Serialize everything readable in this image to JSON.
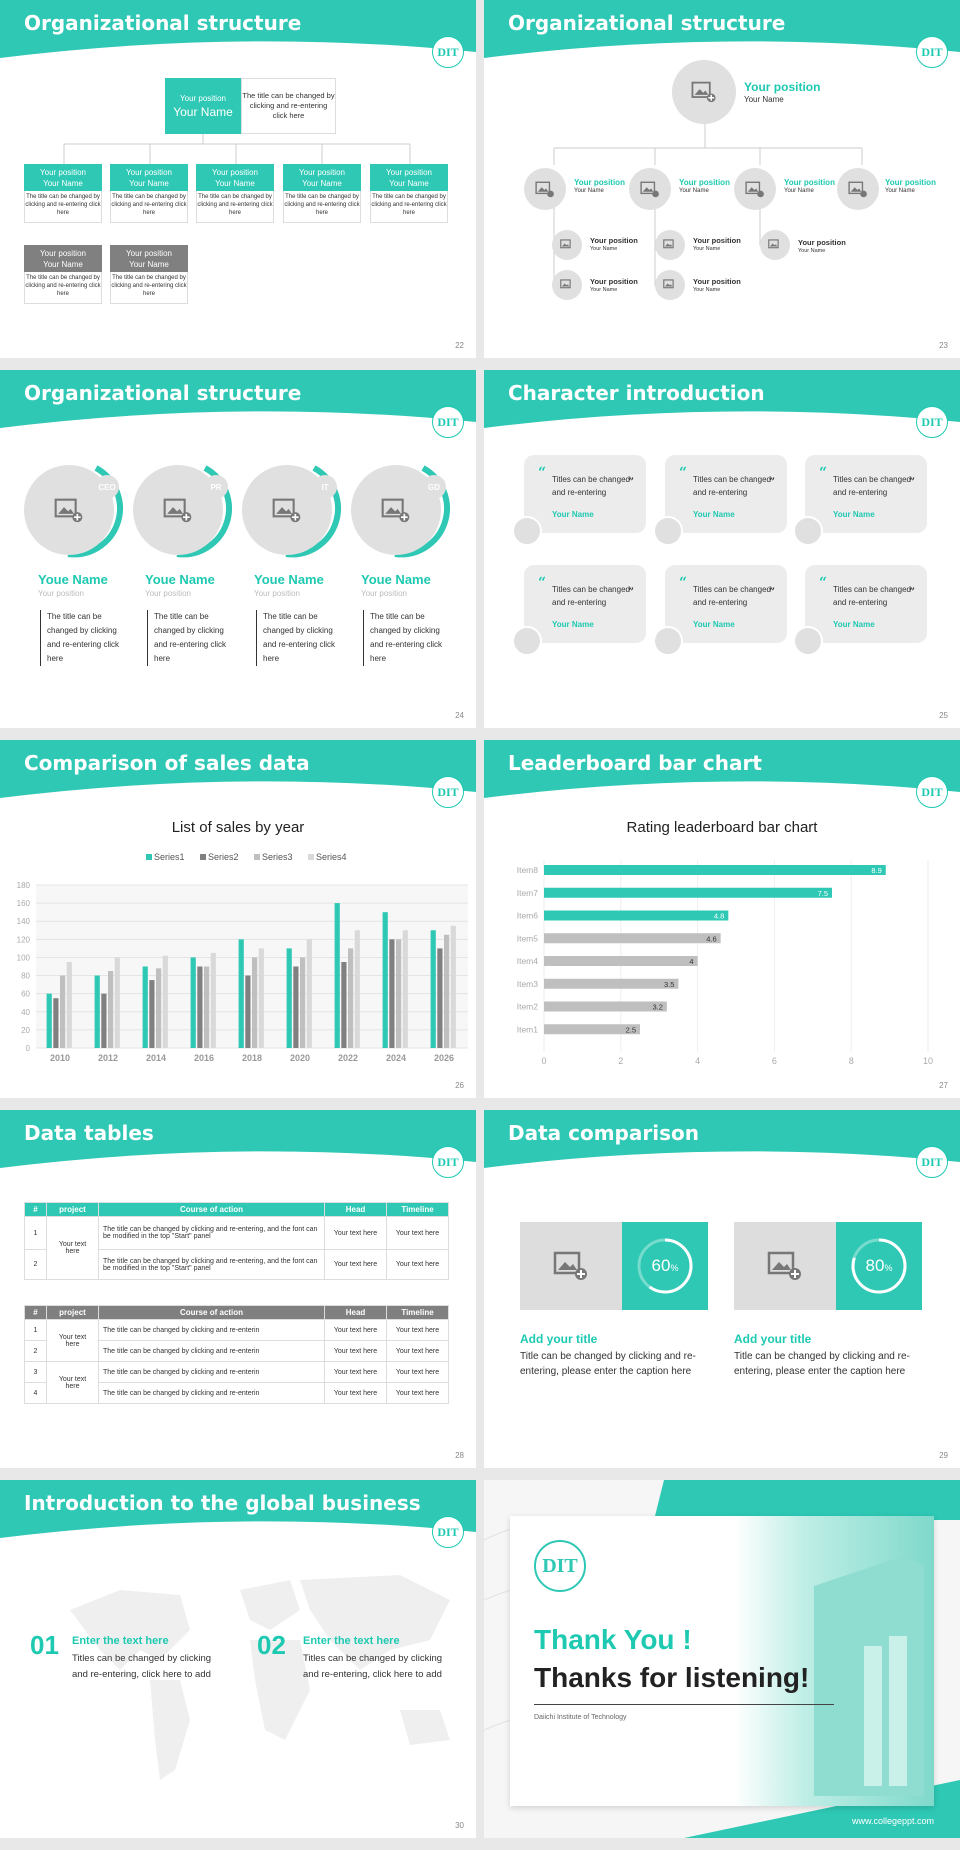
{
  "colors": {
    "teal": "#2ec8b4",
    "gray": "#808080",
    "light": "#bfbfbf"
  },
  "logo": "DIT",
  "s22": {
    "title": "Organizational structure",
    "page": "22",
    "top_pos": "Your position",
    "top_name": "Your Name",
    "top_desc": "The title can be changed by clicking and re-entering click here",
    "boxes": [
      {
        "pos": "Your position",
        "name": "Your Name",
        "desc": "The title can be changed by clicking and re-entering click here"
      },
      {
        "pos": "Your position",
        "name": "Your Name",
        "desc": "The title can be changed by clicking and re-entering click here"
      },
      {
        "pos": "Your position",
        "name": "Your Name",
        "desc": "The title can be changed by clicking and re-entering click here"
      },
      {
        "pos": "Your position",
        "name": "Your Name",
        "desc": "The title can be changed by clicking and re-entering click here"
      },
      {
        "pos": "Your position",
        "name": "Your Name",
        "desc": "The title can be changed by clicking and re-entering click here"
      },
      {
        "pos": "Your position",
        "name": "Your Name",
        "desc": "The title can be changed by clicking and re-entering click here"
      },
      {
        "pos": "Your position",
        "name": "Your Name",
        "desc": "The title can be changed by clicking and re-entering click here"
      }
    ]
  },
  "s23": {
    "title": "Organizational structure",
    "page": "23",
    "top_pos": "Your position",
    "top_name": "Your Name",
    "mid": [
      {
        "pos": "Your position",
        "name": "Your Name"
      },
      {
        "pos": "Your position",
        "name": "Your Name"
      },
      {
        "pos": "Your position",
        "name": "Your Name"
      },
      {
        "pos": "Your position",
        "name": "Your Name"
      }
    ],
    "sub": [
      {
        "pos": "Your position",
        "name": "Your Name"
      },
      {
        "pos": "Your position",
        "name": "Your Name"
      },
      {
        "pos": "Your position",
        "name": "Your Name"
      },
      {
        "pos": "Your position",
        "name": "Your Name"
      },
      {
        "pos": "Your position",
        "name": "Your Name"
      }
    ]
  },
  "s24": {
    "title": "Organizational structure",
    "page": "24",
    "people": [
      {
        "tag": "CEO",
        "name": "Youe Name",
        "pos": "Your position",
        "desc": "The title can be changed by clicking and re-entering click here"
      },
      {
        "tag": "PR",
        "name": "Youe Name",
        "pos": "Your position",
        "desc": "The title can be changed by clicking and re-entering click here"
      },
      {
        "tag": "IT",
        "name": "Youe Name",
        "pos": "Your position",
        "desc": "The title can be changed by clicking and re-entering click here"
      },
      {
        "tag": "GD",
        "name": "Youe Name",
        "pos": "Your position",
        "desc": "The title can be changed by clicking and re-entering click here"
      }
    ]
  },
  "s25": {
    "title": "Character introduction",
    "page": "25",
    "quotes": [
      {
        "text": "Titles can be changed and re-entering",
        "name": "Your Name"
      },
      {
        "text": "Titles can be changed and re-entering",
        "name": "Your Name"
      },
      {
        "text": "Titles can be changed and re-entering",
        "name": "Your Name"
      },
      {
        "text": "Titles can be changed and re-entering",
        "name": "Your Name"
      },
      {
        "text": "Titles can be changed and re-entering",
        "name": "Your Name"
      },
      {
        "text": "Titles can be changed and re-entering",
        "name": "Your Name"
      }
    ]
  },
  "s26": {
    "title": "Comparison of sales data",
    "page": "26"
  },
  "s27": {
    "title": "Leaderboard bar chart",
    "page": "27"
  },
  "s28": {
    "title": "Data tables",
    "page": "28",
    "t1_headers": [
      "#",
      "project",
      "Course of action",
      "Head",
      "Timeline"
    ],
    "t1_rows": [
      {
        "n": "1",
        "action": "The title can be changed by clicking and re-entering, and the font can be modified in the top \"Start\" panel",
        "head": "Your text here",
        "time": "Your text here"
      },
      {
        "n": "2",
        "action": "The title can be changed by clicking and re-entering, and the font can be modified in the top \"Start\" panel",
        "head": "Your text here",
        "time": "Your text here"
      }
    ],
    "t1_project": "Your text here",
    "t2_headers": [
      "#",
      "project",
      "Course of action",
      "Head",
      "Timeline"
    ],
    "t2_rows": [
      {
        "n": "1",
        "action": "The title can be changed by clicking and re-enterin",
        "head": "Your text here",
        "time": "Your text here"
      },
      {
        "n": "2",
        "action": "The title can be changed by clicking and re-enterin",
        "head": "Your text here",
        "time": "Your text here"
      },
      {
        "n": "3",
        "action": "The title can be changed by clicking and re-enterin",
        "head": "Your text here",
        "time": "Your text here"
      },
      {
        "n": "4",
        "action": "The title can be changed by clicking and re-enterin",
        "head": "Your text here",
        "time": "Your text here"
      }
    ],
    "t2_project_a": "Your text here",
    "t2_project_b": "Your text here"
  },
  "s29": {
    "title": "Data comparison",
    "page": "29",
    "items": [
      {
        "pct": "60",
        "pct_value": 60,
        "sym": "%",
        "title": "Add your title",
        "desc": "Title can be changed by clicking and re-entering, please enter the caption here"
      },
      {
        "pct": "80",
        "pct_value": 80,
        "sym": "%",
        "title": "Add your title",
        "desc": "Title can be changed by clicking and re-entering, please enter the caption here"
      }
    ]
  },
  "s30": {
    "title": "Introduction to the global business",
    "page": "30",
    "items": [
      {
        "num": "01",
        "head": "Enter the text here",
        "desc": "Titles can be changed by clicking and re-entering, click here to add"
      },
      {
        "num": "02",
        "head": "Enter the text here",
        "desc": "Titles can be changed by clicking and re-entering, click here to add"
      }
    ]
  },
  "s31": {
    "thank": "Thank You !",
    "listen": "Thanks for listening!",
    "inst": "Daiichi Institute of Technology",
    "url": "www.collegeppt.com"
  },
  "chart_data": [
    {
      "type": "bar",
      "title": "List of sales by year",
      "categories": [
        "2010",
        "2012",
        "2014",
        "2016",
        "2018",
        "2020",
        "2022",
        "2024",
        "2026"
      ],
      "series": [
        {
          "name": "Series1",
          "values": [
            60,
            80,
            90,
            100,
            120,
            110,
            160,
            150,
            130
          ]
        },
        {
          "name": "Series2",
          "values": [
            55,
            60,
            75,
            90,
            80,
            90,
            95,
            120,
            110
          ]
        },
        {
          "name": "Series3",
          "values": [
            80,
            85,
            88,
            90,
            100,
            100,
            110,
            120,
            125
          ]
        },
        {
          "name": "Series4",
          "values": [
            95,
            100,
            102,
            105,
            110,
            120,
            130,
            130,
            135
          ]
        }
      ],
      "ylim": [
        0,
        180
      ],
      "yticks": [
        0,
        20,
        40,
        60,
        80,
        100,
        120,
        140,
        160,
        180
      ],
      "legend": "top",
      "grid": true
    },
    {
      "type": "bar",
      "orientation": "horizontal",
      "title": "Rating leaderboard bar chart",
      "categories": [
        "Item8",
        "Item7",
        "Item6",
        "Item5",
        "Item4",
        "Item3",
        "Item2",
        "Item1"
      ],
      "values": [
        8.9,
        7.5,
        4.8,
        4.6,
        4,
        3.5,
        3.2,
        2.5
      ],
      "labels": [
        "8.9",
        "7.5",
        "4.8",
        "4.6",
        "4",
        "3.5",
        "3.2",
        "2.5"
      ],
      "xlim": [
        0,
        10
      ],
      "xticks": [
        "0",
        "2",
        "4",
        "6",
        "8",
        "10"
      ],
      "grid": true
    }
  ]
}
